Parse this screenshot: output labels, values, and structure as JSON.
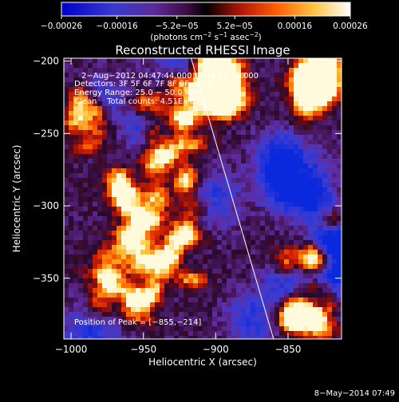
{
  "chart_data": {
    "type": "heatmap",
    "title": "Reconstructed RHESSI Image",
    "xlabel": "Heliocentric X (arcsec)",
    "ylabel": "Heliocentric Y (arcsec)",
    "xlim": [
      -1005,
      -813
    ],
    "ylim": [
      -392,
      -198
    ],
    "x_ticks": [
      -1000,
      -950,
      -900,
      -850
    ],
    "x_tick_labels": [
      "−1000",
      "−950",
      "−900",
      "−850"
    ],
    "y_ticks": [
      -200,
      -250,
      -300,
      -350
    ],
    "y_tick_labels": [
      "−200",
      "−250",
      "−300",
      "−350"
    ],
    "colorbar": {
      "range": [
        -0.00026,
        0.00026
      ],
      "ticks": [
        -0.00026,
        -0.00016,
        -5.2e-05,
        5.2e-05,
        0.00016,
        0.00026
      ],
      "tick_labels": [
        "−0.00026",
        "−0.00016",
        "−5.2e−05",
        "5.2e−05",
        "0.00016",
        "0.00026"
      ],
      "unit_prefix": "(photons cm",
      "unit_exp1": "−2",
      "unit_mid": " s",
      "unit_exp2": "−1",
      "unit_mid2": " asec",
      "unit_exp3": "−2",
      "unit_suffix": ")"
    },
    "annotations": {
      "time": "2−Aug−2012 04:47:44.000 to 04:52:26.000",
      "detectors": "Detectors: 3F 5F 6F 7F 8F 9F, Att 0",
      "energy": "Energy Range: 25.0 − 50.0 keV",
      "clean": "Clean    Total counts: 4.51E+03",
      "peak": "Position of Peak = [−855,−214]"
    },
    "limb_line": [
      [
        -917,
        -198
      ],
      [
        -860,
        -392
      ]
    ],
    "footer": "8−May−2014 07:49"
  }
}
